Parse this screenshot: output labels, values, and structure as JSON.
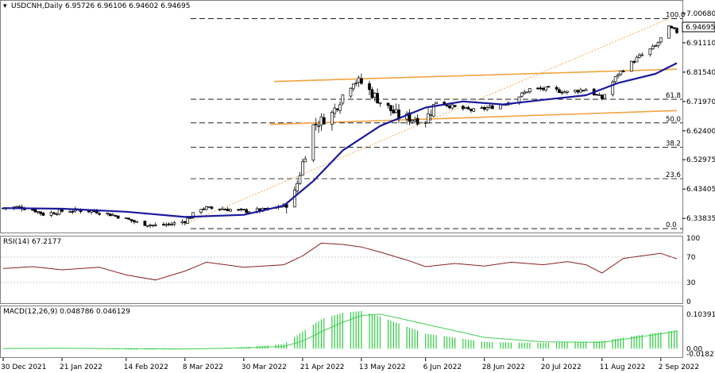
{
  "header": {
    "symbol": "USDCNH,Daily",
    "ohlc": "6.95726 6.96106 6.94602 6.94695"
  },
  "price_box": "6.94695",
  "rsi_header": "RSI(14) 67.2177",
  "macd_header": "MACD(12,26,9) 0.048786 0.046129",
  "price_axis": [
    "7.00680",
    "6.91110",
    "6.81540",
    "6.71970",
    "6.62400",
    "6.52975",
    "6.43405",
    "6.33835"
  ],
  "rsi_axis": [
    "100",
    "70",
    "30",
    "0"
  ],
  "macd_axis": [
    "0.103913",
    "0.00",
    "-0.018278"
  ],
  "date_axis": [
    "30 Dec 2021",
    "21 Jan 2022",
    "14 Feb 2022",
    "8 Mar 2022",
    "30 Mar 2022",
    "21 Apr 2022",
    "13 May 2022",
    "6 Jun 2022",
    "28 Jun 2022",
    "20 Jul 2022",
    "11 Aug 2022",
    "2 Sep 2022"
  ],
  "fib_levels": [
    {
      "label": "100.0",
      "price": 6.99
    },
    {
      "label": "61.8",
      "price": 6.727
    },
    {
      "label": "50.0",
      "price": 6.65
    },
    {
      "label": "38.2",
      "price": 6.57
    },
    {
      "label": "23.6",
      "price": 6.468
    },
    {
      "label": "0.0",
      "price": 6.305
    }
  ],
  "colors": {
    "candle": "#000000",
    "ma": "#1a1a9e",
    "channel": "#f5a341",
    "fib_dashed": "#000000",
    "rsi": "#8b2020",
    "macd_hist": "#2ecc40",
    "macd_signal": "#2ecc40",
    "grid": "#9a9a9a"
  },
  "chart_data": [
    {
      "type": "candlestick",
      "title": "USDCNH,Daily",
      "ylim": [
        6.3,
        7.03
      ],
      "price_points": [
        [
          "2021-12-30",
          6.372
        ],
        [
          "2022-01-05",
          6.375
        ],
        [
          "2022-01-10",
          6.368
        ],
        [
          "2022-01-14",
          6.352
        ],
        [
          "2022-01-21",
          6.362
        ],
        [
          "2022-01-27",
          6.365
        ],
        [
          "2022-02-04",
          6.36
        ],
        [
          "2022-02-11",
          6.345
        ],
        [
          "2022-02-18",
          6.325
        ],
        [
          "2022-02-25",
          6.315
        ],
        [
          "2022-03-03",
          6.32
        ],
        [
          "2022-03-08",
          6.33
        ],
        [
          "2022-03-14",
          6.372
        ],
        [
          "2022-03-22",
          6.37
        ],
        [
          "2022-03-30",
          6.362
        ],
        [
          "2022-04-07",
          6.365
        ],
        [
          "2022-04-14",
          6.38
        ],
        [
          "2022-04-18",
          6.42
        ],
        [
          "2022-04-21",
          6.52
        ],
        [
          "2022-04-25",
          6.64
        ],
        [
          "2022-05-02",
          6.68
        ],
        [
          "2022-05-06",
          6.74
        ],
        [
          "2022-05-10",
          6.79
        ],
        [
          "2022-05-13",
          6.78
        ],
        [
          "2022-05-20",
          6.72
        ],
        [
          "2022-05-27",
          6.67
        ],
        [
          "2022-06-06",
          6.66
        ],
        [
          "2022-06-10",
          6.72
        ],
        [
          "2022-06-17",
          6.7
        ],
        [
          "2022-06-24",
          6.69
        ],
        [
          "2022-06-30",
          6.7
        ],
        [
          "2022-07-08",
          6.72
        ],
        [
          "2022-07-15",
          6.76
        ],
        [
          "2022-07-22",
          6.76
        ],
        [
          "2022-07-29",
          6.75
        ],
        [
          "2022-08-05",
          6.76
        ],
        [
          "2022-08-11",
          6.73
        ],
        [
          "2022-08-17",
          6.81
        ],
        [
          "2022-08-24",
          6.86
        ],
        [
          "2022-08-31",
          6.9
        ],
        [
          "2022-09-05",
          6.96
        ],
        [
          "2022-09-08",
          6.94695
        ]
      ],
      "ma_points": [
        [
          "2021-12-30",
          6.372
        ],
        [
          "2022-01-21",
          6.37
        ],
        [
          "2022-02-14",
          6.36
        ],
        [
          "2022-03-08",
          6.343
        ],
        [
          "2022-03-30",
          6.35
        ],
        [
          "2022-04-14",
          6.38
        ],
        [
          "2022-04-25",
          6.46
        ],
        [
          "2022-05-06",
          6.56
        ],
        [
          "2022-05-20",
          6.64
        ],
        [
          "2022-06-06",
          6.7
        ],
        [
          "2022-06-20",
          6.72
        ],
        [
          "2022-07-05",
          6.71
        ],
        [
          "2022-07-20",
          6.725
        ],
        [
          "2022-08-05",
          6.74
        ],
        [
          "2022-08-17",
          6.78
        ],
        [
          "2022-08-31",
          6.81
        ],
        [
          "2022-09-08",
          6.845
        ]
      ]
    },
    {
      "type": "line",
      "title": "RSI(14) 67.2177",
      "ylim": [
        0,
        100
      ],
      "x": [
        "2021-12-30",
        "2022-01-10",
        "2022-01-21",
        "2022-02-04",
        "2022-02-14",
        "2022-02-25",
        "2022-03-08",
        "2022-03-16",
        "2022-03-30",
        "2022-04-14",
        "2022-04-21",
        "2022-04-28",
        "2022-05-06",
        "2022-05-13",
        "2022-05-20",
        "2022-05-31",
        "2022-06-06",
        "2022-06-17",
        "2022-06-28",
        "2022-07-08",
        "2022-07-20",
        "2022-07-29",
        "2022-08-05",
        "2022-08-11",
        "2022-08-19",
        "2022-08-26",
        "2022-09-02",
        "2022-09-08"
      ],
      "values": [
        52,
        55,
        50,
        54,
        42,
        34,
        48,
        62,
        54,
        58,
        72,
        92,
        90,
        86,
        78,
        64,
        55,
        60,
        56,
        62,
        58,
        63,
        58,
        45,
        68,
        72,
        76,
        67.2177
      ]
    },
    {
      "type": "bar",
      "title": "MACD(12,26,9) 0.048786 0.046129",
      "ylim": [
        -0.018278,
        0.103913
      ],
      "x": [
        "2021-12-30",
        "2022-01-21",
        "2022-02-14",
        "2022-03-08",
        "2022-03-30",
        "2022-04-14",
        "2022-04-21",
        "2022-04-28",
        "2022-05-06",
        "2022-05-13",
        "2022-05-20",
        "2022-06-06",
        "2022-06-28",
        "2022-07-20",
        "2022-08-11",
        "2022-08-24",
        "2022-09-08"
      ],
      "values": [
        0.001,
        0.002,
        -0.003,
        -0.002,
        0.004,
        0.012,
        0.045,
        0.078,
        0.095,
        0.1,
        0.085,
        0.04,
        0.018,
        0.015,
        0.02,
        0.035,
        0.048786
      ],
      "signal": [
        0.0005,
        0.001,
        0.0,
        -0.001,
        0.002,
        0.006,
        0.02,
        0.045,
        0.07,
        0.088,
        0.092,
        0.065,
        0.03,
        0.018,
        0.017,
        0.03,
        0.046129
      ]
    }
  ]
}
